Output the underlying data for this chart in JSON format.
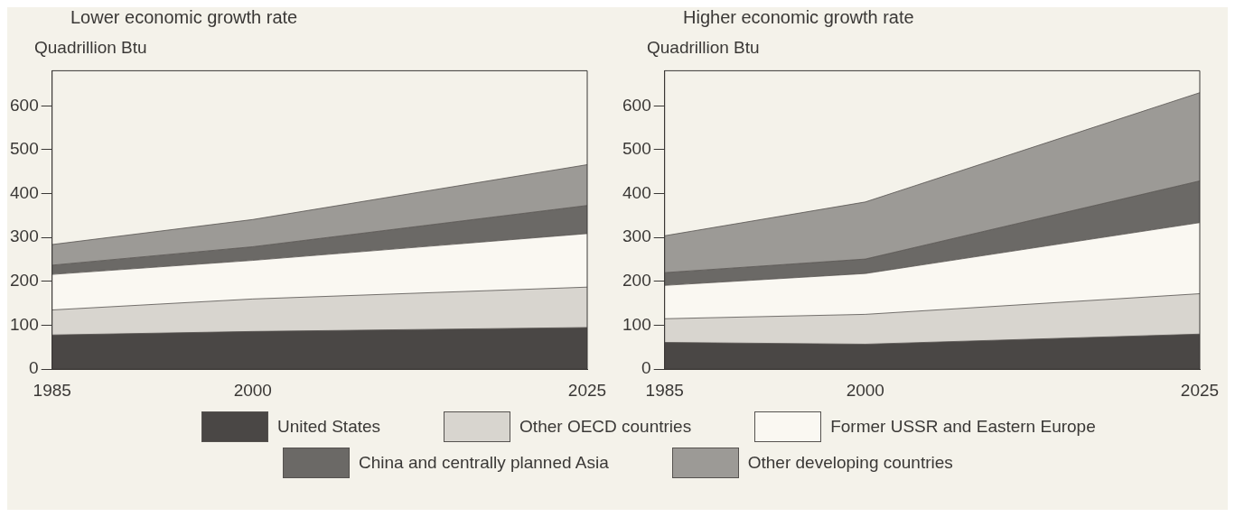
{
  "chart_data": [
    {
      "type": "area",
      "title": "Lower economic growth rate",
      "ylabel": "Quadrillion Btu",
      "x": [
        1985,
        2000,
        2025
      ],
      "xlim": [
        1985,
        2025
      ],
      "xticks": [
        1985,
        2000,
        2025
      ],
      "ylim": [
        0,
        680
      ],
      "yticks": [
        0,
        100,
        200,
        300,
        400,
        500,
        600
      ],
      "stacked": true,
      "grid": false,
      "legend": "bottom",
      "series": [
        {
          "name": "United States",
          "color": "#4a4745",
          "values": [
            78,
            86,
            95
          ]
        },
        {
          "name": "Other OECD countries",
          "color": "#d8d5cf",
          "values": [
            57,
            74,
            92
          ]
        },
        {
          "name": "Former USSR and Eastern Europe",
          "color": "#faf8f2",
          "values": [
            81,
            88,
            122
          ]
        },
        {
          "name": "China and centrally planned Asia",
          "color": "#6b6966",
          "values": [
            21,
            31,
            64
          ]
        },
        {
          "name": "Other developing countries",
          "color": "#9c9a96",
          "values": [
            47,
            62,
            93
          ]
        }
      ]
    },
    {
      "type": "area",
      "title": "Higher economic growth rate",
      "ylabel": "Quadrillion Btu",
      "x": [
        1985,
        2000,
        2025
      ],
      "xlim": [
        1985,
        2025
      ],
      "xticks": [
        1985,
        2000,
        2025
      ],
      "ylim": [
        0,
        680
      ],
      "yticks": [
        0,
        100,
        200,
        300,
        400,
        500,
        600
      ],
      "stacked": true,
      "grid": false,
      "series": [
        {
          "color": "#4a4745",
          "values": [
            61,
            57,
            80
          ]
        },
        {
          "color": "#d8d5cf",
          "values": [
            54,
            68,
            92
          ]
        },
        {
          "color": "#faf8f2",
          "values": [
            76,
            93,
            162
          ]
        },
        {
          "color": "#6b6966",
          "values": [
            29,
            33,
            95
          ]
        },
        {
          "color": "#9c9a96",
          "values": [
            84,
            130,
            201
          ]
        }
      ]
    }
  ]
}
